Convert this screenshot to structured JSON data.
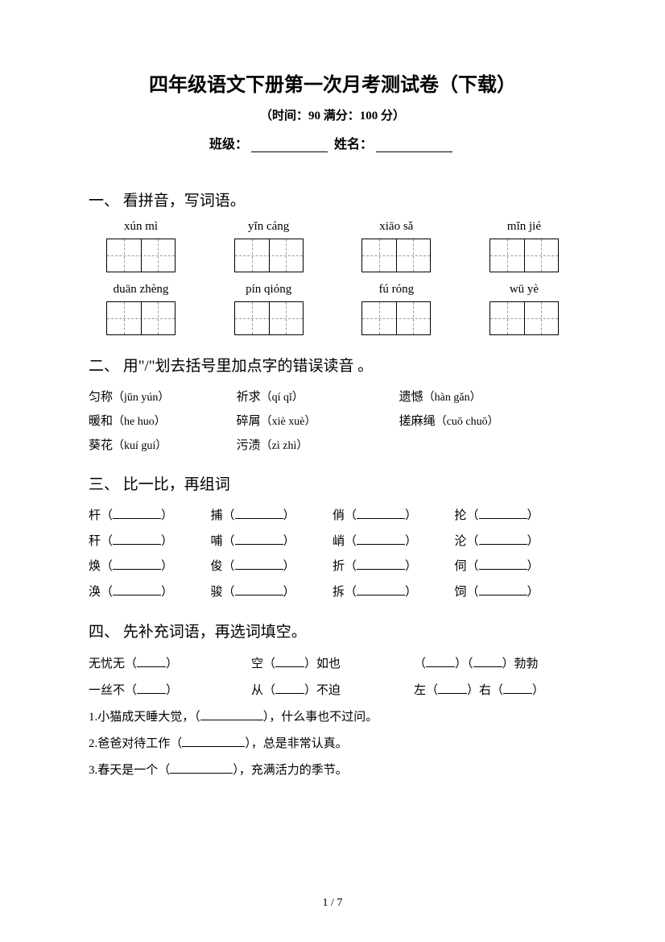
{
  "title": "四年级语文下册第一次月考测试卷（下载）",
  "subtitle": "（时间：90   满分：100 分）",
  "info_class": "班级：",
  "info_name": "姓名：",
  "section1": {
    "heading": "一、 看拼音，写词语。",
    "row1": [
      "xún mì",
      "yǐn cáng",
      "xiāo sǎ",
      "mǐn jié"
    ],
    "row2": [
      "duān zhèng",
      "pín qióng",
      "fú róng",
      "wū yè"
    ]
  },
  "section2": {
    "heading": "二、 用\"/\"划去括号里加点字的错误读音 。",
    "rows": [
      [
        {
          "chars": "匀称",
          "paren": "（jūn  yún）"
        },
        {
          "chars": "祈求",
          "paren": "（qí  qǐ）"
        },
        {
          "chars": "遗憾",
          "paren": "（hàn  gǎn）"
        }
      ],
      [
        {
          "chars": "暖和",
          "paren": "（he  huo）"
        },
        {
          "chars": "碎屑",
          "paren": "（xiè  xuè）"
        },
        {
          "chars": "搓麻绳",
          "paren": "（cuō  chuō）"
        }
      ],
      [
        {
          "chars": "葵花",
          "paren": "（kuí  guí）"
        },
        {
          "chars": "污渍",
          "paren": "（zì  zhì）"
        },
        {
          "chars": "",
          "paren": ""
        }
      ]
    ]
  },
  "section3": {
    "heading": "三、 比一比，再组词",
    "rows": [
      [
        "杆",
        "捕",
        "俏",
        "抡"
      ],
      [
        "秆",
        "哺",
        "峭",
        "沦"
      ],
      [
        "焕",
        "俊",
        "折",
        "伺"
      ],
      [
        "涣",
        "骏",
        "拆",
        "饲"
      ]
    ]
  },
  "section4": {
    "heading": "四、 先补充词语，再选词填空。",
    "row1": [
      {
        "pre": "无忧无（",
        "post": "）"
      },
      {
        "pre": "空（",
        "post": "）如也"
      },
      {
        "pre": "（",
        "mid": "）（",
        "post": "）勃勃"
      }
    ],
    "row2": [
      {
        "pre": "一丝不（",
        "post": "）"
      },
      {
        "pre": "从（",
        "post": "）不迫"
      },
      {
        "pre": "左（",
        "mid": "）右（",
        "post": "）"
      }
    ],
    "sentences": [
      {
        "num": "1.",
        "pre": "小猫成天睡大觉，（",
        "post": "），什么事也不过问。"
      },
      {
        "num": "2.",
        "pre": "爸爸对待工作（",
        "post": "），总是非常认真。"
      },
      {
        "num": "3.",
        "pre": "春天是一个（",
        "post": "），充满活力的季节。"
      }
    ]
  },
  "footer": "1 / 7"
}
